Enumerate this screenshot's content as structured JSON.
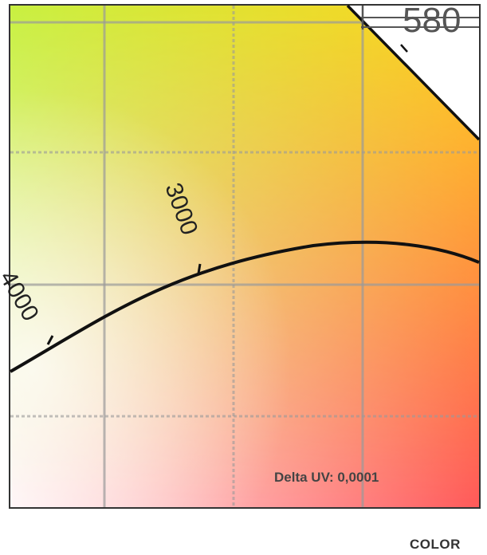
{
  "chart_data": {
    "type": "line",
    "title": "",
    "xlabel": "",
    "ylabel": "",
    "colors": {
      "top_left": "#c8f040",
      "top_right": "#ffd21e",
      "bottom_right": "#ff5a5a",
      "bottom_left": "#fff0f4",
      "curve": "#111111",
      "grid": "#999999"
    },
    "series": [
      {
        "kind": "planckian-locus",
        "ticks": [
          {
            "label": "4000"
          },
          {
            "label": "3000"
          }
        ]
      },
      {
        "kind": "spectral-locus-edge",
        "ticks": [
          {
            "label": "580"
          }
        ]
      }
    ],
    "annotations": [
      {
        "text": "Delta UV: 0,0001"
      }
    ],
    "grid": true
  },
  "caption": "COLOR"
}
